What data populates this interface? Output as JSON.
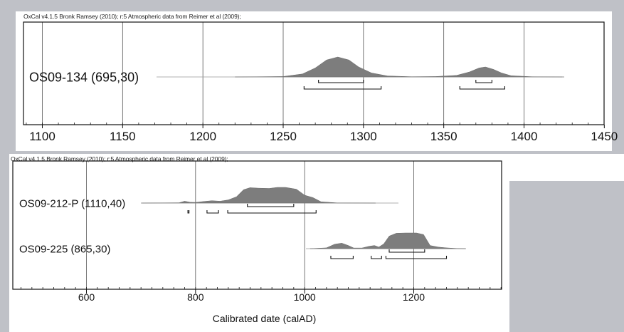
{
  "chart_data": [
    {
      "type": "area",
      "credit": "OxCal v4.1.5 Bronk Ramsey (2010); r:5 Atmospheric data from Reimer et al (2009);",
      "title": "",
      "xlabel": "",
      "ylabel": "",
      "xlim": [
        1090,
        1450
      ],
      "x_ticks": [
        1100,
        1150,
        1200,
        1250,
        1300,
        1350,
        1400,
        1450
      ],
      "x_tick_labels": [
        "1100",
        "1150",
        "1200",
        "1250",
        "1300",
        "1350",
        "1400",
        "1450"
      ],
      "grid": true,
      "series": [
        {
          "name": "OS09-134 (695,30)",
          "density_points": [
            [
              1220,
              0
            ],
            [
              1250,
              0.02
            ],
            [
              1262,
              0.15
            ],
            [
              1270,
              0.45
            ],
            [
              1277,
              0.85
            ],
            [
              1284,
              1.0
            ],
            [
              1291,
              0.85
            ],
            [
              1297,
              0.5
            ],
            [
              1305,
              0.2
            ],
            [
              1315,
              0.05
            ],
            [
              1330,
              0.01
            ],
            [
              1345,
              0.02
            ],
            [
              1358,
              0.08
            ],
            [
              1366,
              0.25
            ],
            [
              1372,
              0.45
            ],
            [
              1376,
              0.5
            ],
            [
              1381,
              0.38
            ],
            [
              1386,
              0.2
            ],
            [
              1392,
              0.06
            ],
            [
              1405,
              0.01
            ],
            [
              1425,
              0
            ]
          ],
          "ranges_68": [
            [
              1272,
              1300
            ],
            [
              1370,
              1380
            ]
          ],
          "ranges_95": [
            [
              1263,
              1311
            ],
            [
              1360,
              1388
            ]
          ]
        }
      ]
    },
    {
      "type": "area",
      "credit": "OxCal v4.1.5 Bronk Ramsey (2010); r:5 Atmospheric data from Reimer et al (2009);",
      "title": "",
      "xlabel": "Calibrated date (calAD)",
      "ylabel": "",
      "xlim": [
        470,
        1370
      ],
      "x_ticks": [
        600,
        800,
        1000,
        1200
      ],
      "x_tick_labels": [
        "600",
        "800",
        "1000",
        "1200"
      ],
      "grid": true,
      "series": [
        {
          "name": "OS09-212-P (1110,40)",
          "density_points": [
            [
              700,
              0
            ],
            [
              770,
              0.02
            ],
            [
              780,
              0.12
            ],
            [
              790,
              0.05
            ],
            [
              800,
              0.04
            ],
            [
              815,
              0.1
            ],
            [
              830,
              0.15
            ],
            [
              845,
              0.12
            ],
            [
              860,
              0.2
            ],
            [
              875,
              0.4
            ],
            [
              888,
              0.85
            ],
            [
              900,
              0.98
            ],
            [
              915,
              0.95
            ],
            [
              935,
              0.93
            ],
            [
              950,
              1.0
            ],
            [
              965,
              1.0
            ],
            [
              985,
              0.88
            ],
            [
              1000,
              0.5
            ],
            [
              1015,
              0.35
            ],
            [
              1030,
              0.08
            ],
            [
              1060,
              0.01
            ],
            [
              1130,
              0
            ]
          ],
          "ranges_68": [
            [
              895,
              980
            ]
          ],
          "ranges_95": [
            [
              786,
              788
            ],
            [
              821,
              842
            ],
            [
              859,
              1021
            ]
          ]
        },
        {
          "name": "OS09-225 (865,30)",
          "density_points": [
            [
              1010,
              0
            ],
            [
              1040,
              0.05
            ],
            [
              1055,
              0.28
            ],
            [
              1068,
              0.35
            ],
            [
              1080,
              0.2
            ],
            [
              1090,
              0.04
            ],
            [
              1105,
              0.04
            ],
            [
              1118,
              0.15
            ],
            [
              1128,
              0.2
            ],
            [
              1136,
              0.1
            ],
            [
              1145,
              0.3
            ],
            [
              1155,
              0.8
            ],
            [
              1168,
              0.98
            ],
            [
              1185,
              1.0
            ],
            [
              1205,
              1.0
            ],
            [
              1218,
              0.9
            ],
            [
              1230,
              0.2
            ],
            [
              1245,
              0.1
            ],
            [
              1260,
              0.05
            ],
            [
              1280,
              0.01
            ],
            [
              1295,
              0
            ]
          ],
          "ranges_68": [
            [
              1155,
              1220
            ]
          ],
          "ranges_95": [
            [
              1048,
              1089
            ],
            [
              1122,
              1141
            ],
            [
              1149,
              1260
            ]
          ]
        }
      ]
    }
  ]
}
